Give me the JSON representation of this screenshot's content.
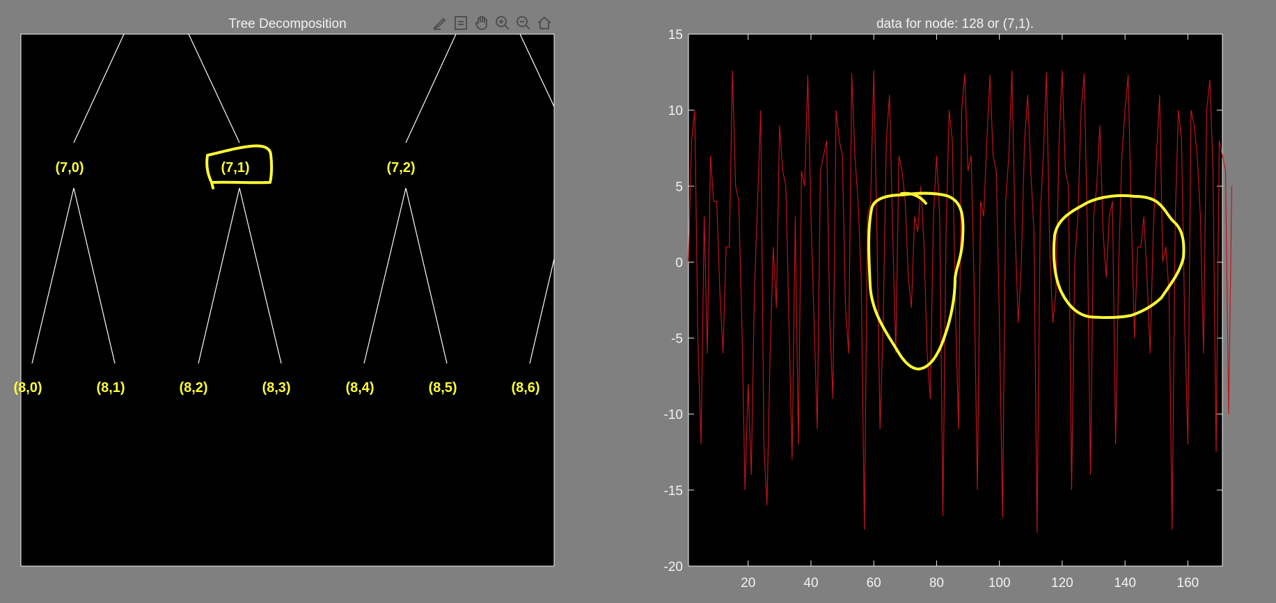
{
  "tree_panel": {
    "title": "Tree Decomposition",
    "toolbar": [
      {
        "icon": "brush-icon"
      },
      {
        "icon": "data-tips-icon"
      },
      {
        "icon": "pan-hand-icon"
      },
      {
        "icon": "zoom-in-icon"
      },
      {
        "icon": "zoom-out-icon"
      },
      {
        "icon": "home-icon"
      }
    ],
    "nodes_level7": [
      "(7,0)",
      "(7,1)",
      "(7,2)"
    ],
    "nodes_level8": [
      "(8,0)",
      "(8,1)",
      "(8,2)",
      "(8,3)",
      "(8,4)",
      "(8,5)",
      "(8,6)"
    ],
    "selected_node": "(7,1)",
    "colors": {
      "background": "#000000",
      "label": "#ffff33",
      "edges": "#ffffff",
      "highlight": "#ffff33"
    }
  },
  "signal_panel": {
    "title": "data for node: 128 or (7,1).",
    "colors": {
      "background": "#000000",
      "line": "#c0141a",
      "axis": "#f2f2f2",
      "highlight": "#ffff33"
    }
  },
  "chart_data": {
    "type": "line",
    "title": "data for node: 128 or (7,1).",
    "xlabel": "",
    "ylabel": "",
    "xlim": [
      1,
      171
    ],
    "ylim": [
      -20,
      15
    ],
    "xticks": [
      20,
      40,
      60,
      80,
      100,
      120,
      140,
      160
    ],
    "yticks": [
      -20,
      -15,
      -10,
      -5,
      0,
      5,
      10,
      15
    ],
    "grid": false,
    "series": [
      {
        "x_start": 1,
        "x_step": 1,
        "values": [
          0,
          8,
          10,
          -5,
          -12,
          3,
          -6,
          7,
          4,
          4,
          -2,
          -6,
          1,
          1,
          12.6,
          5,
          4,
          -4,
          -15,
          -8,
          -14,
          -2,
          4,
          10,
          -12,
          -16,
          -6,
          1,
          -3,
          9,
          6,
          5,
          -4,
          -13,
          3,
          -12,
          6,
          5,
          12.3,
          3,
          -4,
          -11,
          6,
          7,
          8,
          -4,
          -9,
          10,
          8,
          7,
          -3,
          -6,
          12.4,
          7,
          4,
          -1,
          -17.6,
          3,
          4,
          12.6,
          2,
          -11,
          -4,
          8,
          11,
          2,
          -6,
          7,
          6,
          4,
          -1,
          -3,
          3,
          2,
          5,
          1,
          -6,
          -9,
          3,
          7,
          3,
          -16.7,
          2,
          10,
          8,
          -3,
          -11,
          10,
          12.4,
          6,
          7,
          -2,
          -15,
          4,
          3,
          8,
          12.3,
          7,
          6,
          -4,
          -16.8,
          4,
          7,
          12.6,
          2,
          -4,
          0,
          8,
          11,
          6,
          2,
          -17.8,
          3,
          7,
          12.5,
          1,
          -4,
          -2,
          8,
          12.6,
          6,
          5,
          -15,
          0,
          3,
          10,
          12.4,
          2,
          -14,
          3,
          5,
          9,
          2,
          -1,
          3,
          4,
          -12,
          0,
          7,
          10,
          12.3,
          3,
          -5,
          1,
          1,
          3,
          -1,
          -6,
          2,
          7,
          11,
          0,
          1,
          -2,
          -17.6,
          3,
          10,
          8,
          -4,
          -12,
          10,
          9,
          7,
          3,
          -6,
          10,
          12,
          6,
          -12.5,
          8,
          7,
          6,
          -10,
          5
        ]
      }
    ]
  }
}
